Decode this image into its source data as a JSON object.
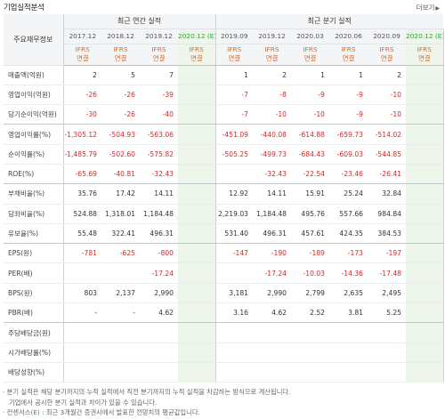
{
  "header": {
    "title": "기업실적분석",
    "more_label": "더보기",
    "more_icon": "chevron-right-icon"
  },
  "table": {
    "rowhdr_label": "주요재무정보",
    "group_annual": "최근 연간 실적",
    "group_quarter": "최근 분기 실적",
    "periods": [
      "2017.12",
      "2018.12",
      "2019.12",
      "2020.12 (E)",
      "2019.09",
      "2019.12",
      "2020.03",
      "2020.06",
      "2020.09",
      "2020.12 (E)"
    ],
    "ifrs_top": "IFRS",
    "ifrs_bottom": "연결",
    "rows": [
      {
        "label": "매출액(억원)",
        "values": [
          "2",
          "5",
          "7",
          "",
          "1",
          "2",
          "1",
          "1",
          "2",
          ""
        ]
      },
      {
        "label": "영업이익(억원)",
        "values": [
          "-26",
          "-26",
          "-39",
          "",
          "-7",
          "-8",
          "-9",
          "-9",
          "-10",
          ""
        ]
      },
      {
        "label": "당기순이익(억원)",
        "values": [
          "-30",
          "-26",
          "-40",
          "",
          "-7",
          "-10",
          "-10",
          "-9",
          "-10",
          ""
        ]
      },
      {
        "label": "영업이익률(%)",
        "values": [
          "-1,305.12",
          "-504.93",
          "-563.06",
          "",
          "-451.09",
          "-440.08",
          "-614.88",
          "-659.73",
          "-514.02",
          ""
        ]
      },
      {
        "label": "순이익률(%)",
        "values": [
          "-1,485.79",
          "-502.60",
          "-575.82",
          "",
          "-505.25",
          "-499.73",
          "-684.43",
          "-609.03",
          "-544.85",
          ""
        ]
      },
      {
        "label": "ROE(%)",
        "values": [
          "-65.69",
          "-40.81",
          "-32.43",
          "",
          "",
          "-32.43",
          "-22.54",
          "-23.46",
          "-26.41",
          ""
        ]
      },
      {
        "label": "부채비율(%)",
        "values": [
          "35.76",
          "17.42",
          "14.11",
          "",
          "12.92",
          "14.11",
          "15.91",
          "25.24",
          "32.84",
          ""
        ]
      },
      {
        "label": "당좌비율(%)",
        "values": [
          "524.88",
          "1,318.01",
          "1,184.48",
          "",
          "2,219.03",
          "1,184.48",
          "495.76",
          "557.66",
          "984.84",
          ""
        ]
      },
      {
        "label": "유보율(%)",
        "values": [
          "55.48",
          "322.41",
          "496.31",
          "",
          "531.40",
          "496.31",
          "457.61",
          "424.35",
          "384.53",
          ""
        ]
      },
      {
        "label": "EPS(원)",
        "values": [
          "-781",
          "-625",
          "-800",
          "",
          "-147",
          "-190",
          "-189",
          "-173",
          "-197",
          ""
        ]
      },
      {
        "label": "PER(배)",
        "values": [
          "",
          "",
          "-17.24",
          "",
          "",
          "-17.24",
          "-10.03",
          "-14.36",
          "-17.48",
          ""
        ]
      },
      {
        "label": "BPS(원)",
        "values": [
          "803",
          "2,137",
          "2,990",
          "",
          "3,181",
          "2,990",
          "2,799",
          "2,635",
          "2,495",
          ""
        ]
      },
      {
        "label": "PBR(배)",
        "values": [
          "-",
          "-",
          "4.62",
          "",
          "3.16",
          "4.62",
          "2.52",
          "3.81",
          "5.25",
          ""
        ]
      },
      {
        "label": "주당배당금(원)",
        "values": [
          "",
          "",
          "",
          "",
          "",
          "",
          "",
          "",
          "",
          ""
        ]
      },
      {
        "label": "시가배당률(%)",
        "values": [
          "",
          "",
          "",
          "",
          "",
          "",
          "",
          "",
          "",
          ""
        ]
      },
      {
        "label": "배당성향(%)",
        "values": [
          "",
          "",
          "",
          "",
          "",
          "",
          "",
          "",
          "",
          ""
        ]
      }
    ]
  },
  "notes": {
    "line1": "· 분기 실적은 해당 분기까지의 누적 실적에서 직전 분기까지의 누적 실적을 차감하는 방식으로 계산됩니다.",
    "line2": "  기업에서 공시한 분기 실적과 차이가 있을 수 있습니다.",
    "line3_prefix": "· 컨센서스",
    "line3_hl": "(E)",
    "line3_suffix": " : 최근 3개월간 증권사에서 발표한 전망치의 평균값입니다."
  },
  "colors": {
    "negative": "#d02b2b",
    "ifrs": "#d66a2a",
    "estimate_bg": "#eef6ec",
    "estimate_text": "#3a9a3a"
  }
}
